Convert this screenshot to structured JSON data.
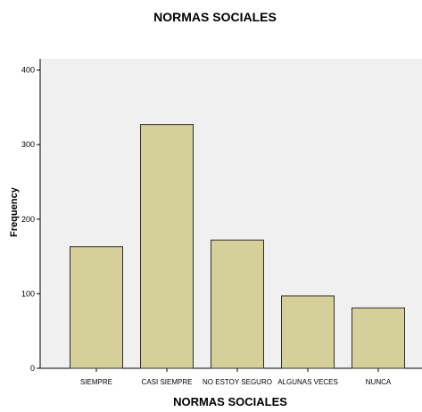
{
  "chart_data": {
    "type": "bar",
    "title": "NORMAS SOCIALES",
    "xlabel": "NORMAS SOCIALES",
    "ylabel": "Frequency",
    "categories": [
      "SIEMPRE",
      "CASI SIEMPRE",
      "NO ESTOY SEGURO",
      "ALGUNAS VECES",
      "NUNCA"
    ],
    "values": [
      163,
      327,
      172,
      97,
      81
    ],
    "ylim": [
      0,
      415
    ],
    "yticks": [
      0,
      100,
      200,
      300,
      400
    ],
    "grid": false,
    "legend": "none",
    "colors": {
      "plot_bg": "#f0f0f0",
      "bar_fill": "#d5d09a",
      "bar_stroke": "#2f2f2f",
      "axis": "#000000",
      "text": "#000000"
    }
  }
}
